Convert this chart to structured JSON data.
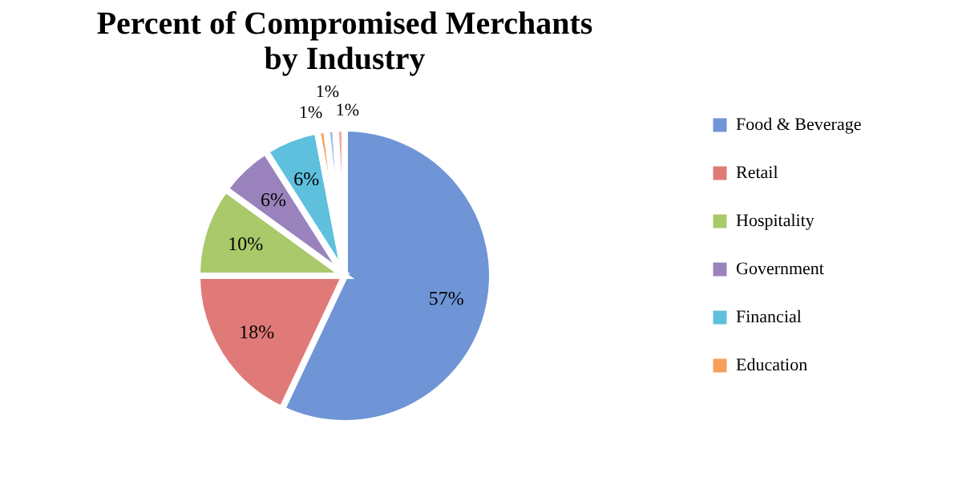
{
  "chart_data": {
    "type": "pie",
    "title": [
      "Percent of Compromised Merchants",
      "by Industry"
    ],
    "categories": [
      "Food & Beverage",
      "Retail",
      "Hospitality",
      "Government",
      "Financial",
      "Education",
      null,
      null
    ],
    "values": [
      57,
      18,
      10,
      6,
      6,
      1,
      1,
      1
    ],
    "value_labels": [
      "57%",
      "18%",
      "10%",
      "6%",
      "6%",
      "1%",
      "1%",
      "1%"
    ],
    "colors": [
      "#6f95d6",
      "#e07a78",
      "#a9c96b",
      "#9a83bd",
      "#5ec0dc",
      "#f7a05c",
      "#a9bfe8",
      "#f4a7a7"
    ],
    "legend": "right"
  }
}
